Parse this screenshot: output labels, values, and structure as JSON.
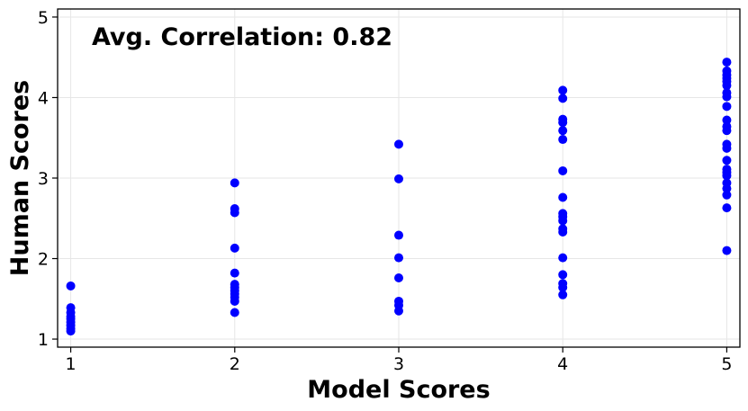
{
  "chart_data": {
    "type": "scatter",
    "title": "",
    "xlabel": "Model Scores",
    "ylabel": "Human Scores",
    "xlim": [
      0.92,
      5.08
    ],
    "ylim": [
      0.9,
      5.1
    ],
    "xticks": [
      1,
      2,
      3,
      4,
      5
    ],
    "yticks": [
      1,
      2,
      3,
      4,
      5
    ],
    "grid": true,
    "marker_color": "#0000ff",
    "annotation": "Avg. Correlation: 0.82",
    "series": [
      {
        "name": "scores",
        "points": [
          {
            "x": 1,
            "y": 1.66
          },
          {
            "x": 1,
            "y": 1.39
          },
          {
            "x": 1,
            "y": 1.33
          },
          {
            "x": 1,
            "y": 1.28
          },
          {
            "x": 1,
            "y": 1.25
          },
          {
            "x": 1,
            "y": 1.21
          },
          {
            "x": 1,
            "y": 1.17
          },
          {
            "x": 1,
            "y": 1.13
          },
          {
            "x": 1,
            "y": 1.1
          },
          {
            "x": 2,
            "y": 2.94
          },
          {
            "x": 2,
            "y": 2.62
          },
          {
            "x": 2,
            "y": 2.57
          },
          {
            "x": 2,
            "y": 2.13
          },
          {
            "x": 2,
            "y": 1.82
          },
          {
            "x": 2,
            "y": 1.68
          },
          {
            "x": 2,
            "y": 1.64
          },
          {
            "x": 2,
            "y": 1.6
          },
          {
            "x": 2,
            "y": 1.56
          },
          {
            "x": 2,
            "y": 1.52
          },
          {
            "x": 2,
            "y": 1.47
          },
          {
            "x": 2,
            "y": 1.33
          },
          {
            "x": 3,
            "y": 3.42
          },
          {
            "x": 3,
            "y": 2.99
          },
          {
            "x": 3,
            "y": 2.29
          },
          {
            "x": 3,
            "y": 2.01
          },
          {
            "x": 3,
            "y": 1.76
          },
          {
            "x": 3,
            "y": 1.47
          },
          {
            "x": 3,
            "y": 1.42
          },
          {
            "x": 3,
            "y": 1.35
          },
          {
            "x": 4,
            "y": 4.09
          },
          {
            "x": 4,
            "y": 3.99
          },
          {
            "x": 4,
            "y": 3.73
          },
          {
            "x": 4,
            "y": 3.69
          },
          {
            "x": 4,
            "y": 3.59
          },
          {
            "x": 4,
            "y": 3.48
          },
          {
            "x": 4,
            "y": 3.09
          },
          {
            "x": 4,
            "y": 2.76
          },
          {
            "x": 4,
            "y": 2.56
          },
          {
            "x": 4,
            "y": 2.52
          },
          {
            "x": 4,
            "y": 2.47
          },
          {
            "x": 4,
            "y": 2.37
          },
          {
            "x": 4,
            "y": 2.33
          },
          {
            "x": 4,
            "y": 2.01
          },
          {
            "x": 4,
            "y": 1.8
          },
          {
            "x": 4,
            "y": 1.69
          },
          {
            "x": 4,
            "y": 1.64
          },
          {
            "x": 4,
            "y": 1.55
          },
          {
            "x": 5,
            "y": 4.44
          },
          {
            "x": 5,
            "y": 4.33
          },
          {
            "x": 5,
            "y": 4.28
          },
          {
            "x": 5,
            "y": 4.24
          },
          {
            "x": 5,
            "y": 4.2
          },
          {
            "x": 5,
            "y": 4.15
          },
          {
            "x": 5,
            "y": 4.06
          },
          {
            "x": 5,
            "y": 4.01
          },
          {
            "x": 5,
            "y": 3.89
          },
          {
            "x": 5,
            "y": 3.72
          },
          {
            "x": 5,
            "y": 3.64
          },
          {
            "x": 5,
            "y": 3.59
          },
          {
            "x": 5,
            "y": 3.42
          },
          {
            "x": 5,
            "y": 3.37
          },
          {
            "x": 5,
            "y": 3.22
          },
          {
            "x": 5,
            "y": 3.11
          },
          {
            "x": 5,
            "y": 3.07
          },
          {
            "x": 5,
            "y": 3.03
          },
          {
            "x": 5,
            "y": 2.94
          },
          {
            "x": 5,
            "y": 2.87
          },
          {
            "x": 5,
            "y": 2.79
          },
          {
            "x": 5,
            "y": 2.63
          },
          {
            "x": 5,
            "y": 2.1
          }
        ]
      }
    ]
  }
}
